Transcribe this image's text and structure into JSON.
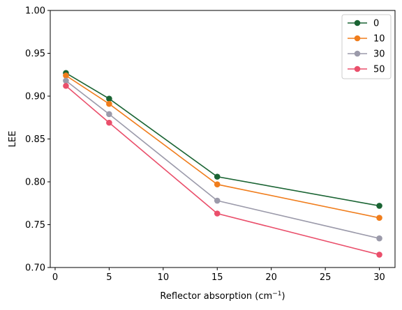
{
  "chart_data": {
    "type": "line",
    "x": [
      1,
      5,
      15,
      30
    ],
    "series": [
      {
        "name": "0",
        "color": "#1a6433",
        "values": [
          0.927,
          0.897,
          0.806,
          0.772
        ]
      },
      {
        "name": "10",
        "color": "#f07d1c",
        "values": [
          0.924,
          0.891,
          0.797,
          0.758
        ]
      },
      {
        "name": "30",
        "color": "#9b9aaa",
        "values": [
          0.918,
          0.879,
          0.778,
          0.734
        ]
      },
      {
        "name": "50",
        "color": "#ea4f6b",
        "values": [
          0.912,
          0.869,
          0.763,
          0.715
        ]
      }
    ],
    "xlabel": "Reflector absorption (cm",
    "xlabel_sup": "−1",
    "xlabel_end": ")",
    "ylabel": "LEE",
    "xlim": [
      -0.45,
      31.45
    ],
    "ylim": [
      0.7,
      1.0
    ],
    "xticks": [
      0,
      5,
      10,
      15,
      20,
      25,
      30
    ],
    "yticks": [
      0.7,
      0.75,
      0.8,
      0.85,
      0.9,
      0.95,
      1.0
    ],
    "xtick_labels": [
      "0",
      "5",
      "10",
      "15",
      "20",
      "25",
      "30"
    ],
    "ytick_labels": [
      "0.70",
      "0.75",
      "0.80",
      "0.85",
      "0.90",
      "0.95",
      "1.00"
    ],
    "grid": false,
    "legend_position": "top-right"
  }
}
